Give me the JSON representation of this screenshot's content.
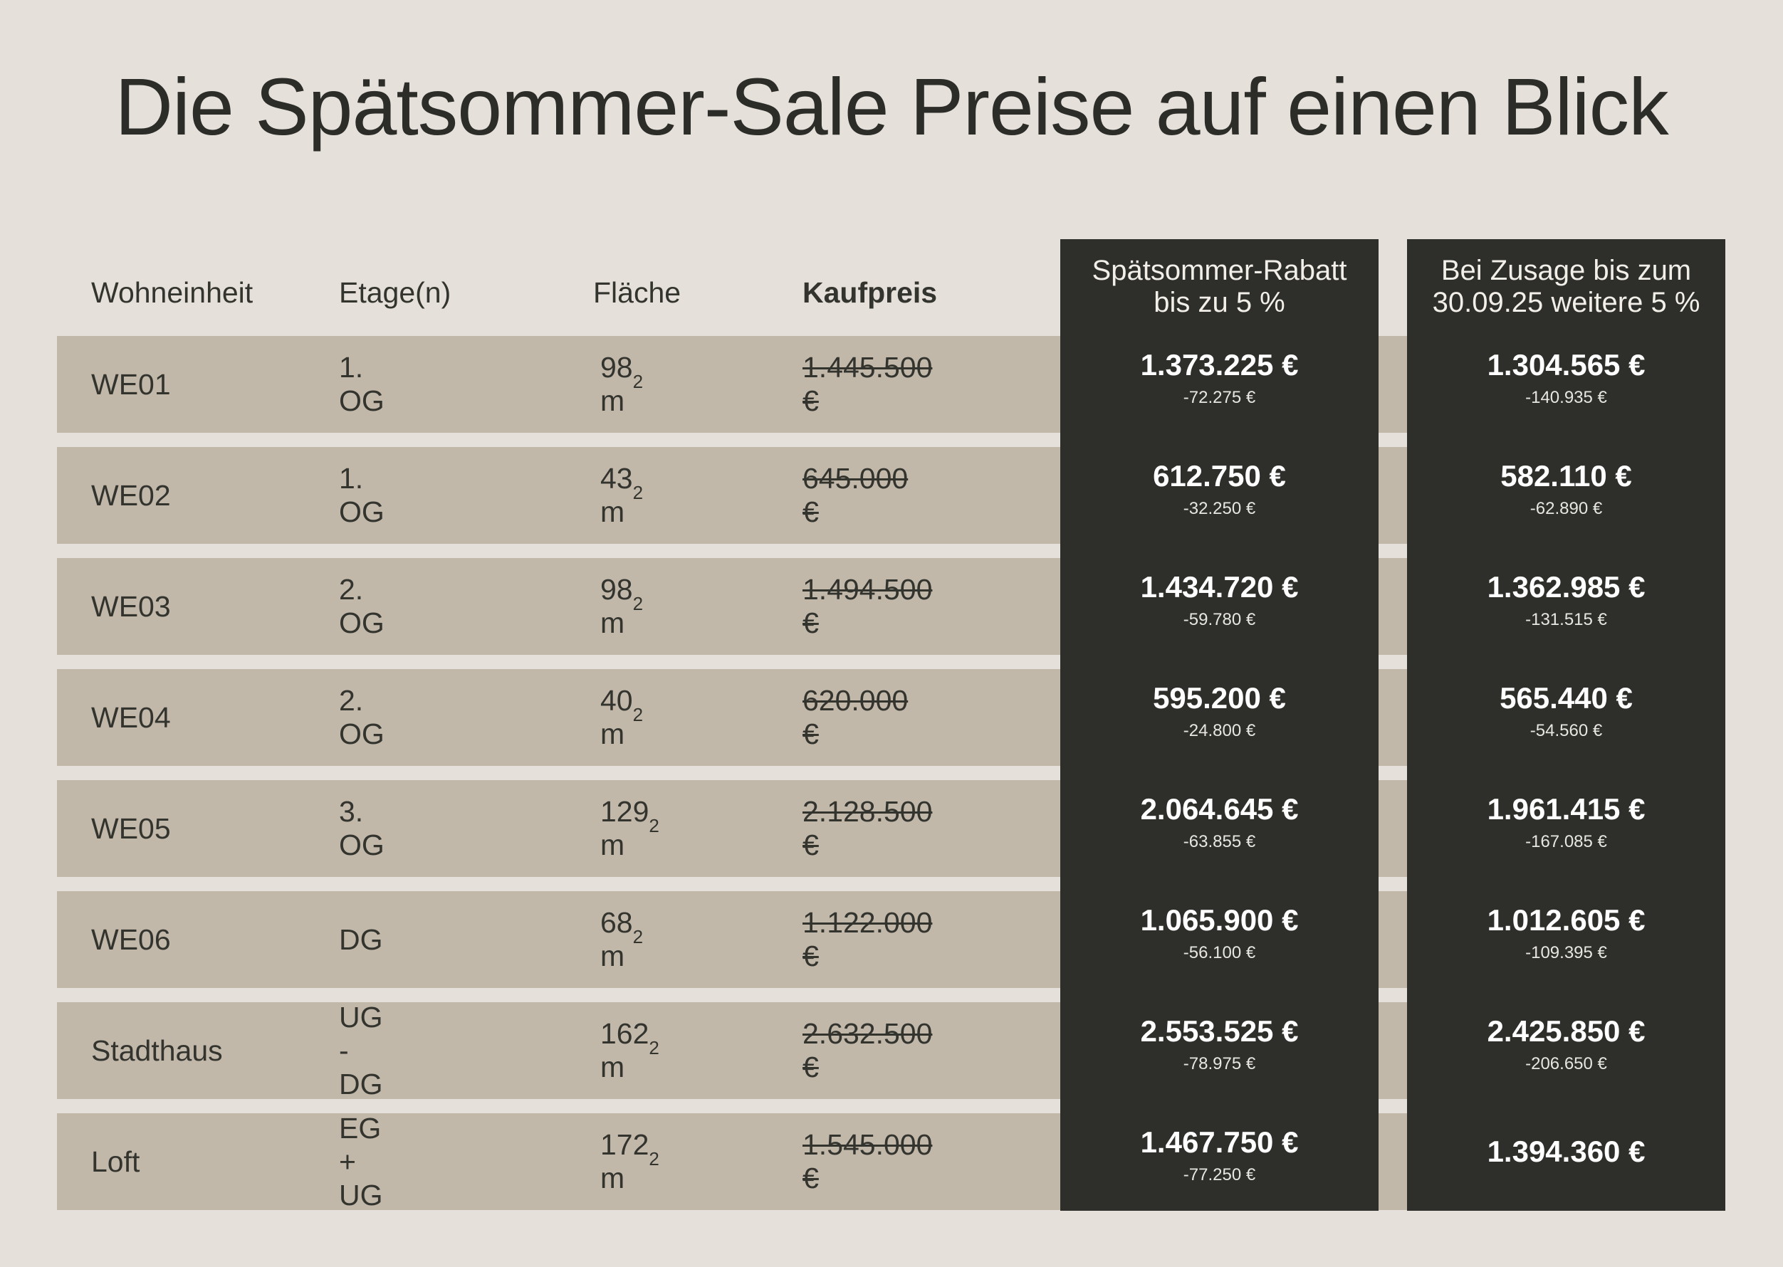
{
  "title": "Die Spätsommer-Sale Preise auf einen Blick",
  "headers": {
    "unit": "Wohneinheit",
    "floor": "Etage(n)",
    "area": "Fläche",
    "price": "Kaufpreis",
    "discount1": "Spätsommer-Rabatt\nbis zu 5 %",
    "discount2": "Bei Zusage bis zum\n30.09.25 weitere 5 %"
  },
  "rows": [
    {
      "unit": "WE01",
      "floor": "1. OG",
      "area": "98 m",
      "area_sup": "2",
      "price": "1.445.500 €",
      "d1": "1.373.225 €",
      "d1_sub": "-72.275 €",
      "d2": "1.304.565 €",
      "d2_sub": "-140.935 €"
    },
    {
      "unit": "WE02",
      "floor": "1. OG",
      "area": "43 m",
      "area_sup": "2",
      "price": "645.000 €",
      "d1": "612.750 €",
      "d1_sub": "-32.250 €",
      "d2": "582.110 €",
      "d2_sub": "-62.890 €"
    },
    {
      "unit": "WE03",
      "floor": "2. OG",
      "area": "98 m",
      "area_sup": "2",
      "price": "1.494.500 €",
      "d1": "1.434.720 €",
      "d1_sub": "-59.780 €",
      "d2": "1.362.985 €",
      "d2_sub": "-131.515 €"
    },
    {
      "unit": "WE04",
      "floor": "2. OG",
      "area": "40 m",
      "area_sup": "2",
      "price": "620.000 €",
      "d1": "595.200 €",
      "d1_sub": "-24.800 €",
      "d2": "565.440 €",
      "d2_sub": "-54.560 €"
    },
    {
      "unit": "WE05",
      "floor": "3. OG",
      "area": "129 m",
      "area_sup": "2",
      "price": "2.128.500 €",
      "d1": "2.064.645 €",
      "d1_sub": "-63.855 €",
      "d2": "1.961.415 €",
      "d2_sub": "-167.085 €"
    },
    {
      "unit": "WE06",
      "floor": "DG",
      "area": "68 m",
      "area_sup": "2",
      "price": "1.122.000 €",
      "d1": "1.065.900 €",
      "d1_sub": "-56.100 €",
      "d2": "1.012.605 €",
      "d2_sub": "-109.395 €"
    },
    {
      "unit": "Stadthaus",
      "floor": "UG - DG",
      "area": "162 m",
      "area_sup": "2",
      "price": "2.632.500 €",
      "d1": "2.553.525 €",
      "d1_sub": "-78.975 €",
      "d2": "2.425.850 €",
      "d2_sub": "-206.650 €"
    },
    {
      "unit": "Loft",
      "floor": "EG + UG",
      "area": "172 m",
      "area_sup": "2",
      "price": "1.545.000 €",
      "d1": "1.467.750 €",
      "d1_sub": "-77.250 €",
      "d2": "1.394.360 €",
      "d2_sub": ""
    }
  ],
  "colors": {
    "background": "#e5e0da",
    "row_band": "#c2b8aa",
    "dark_column": "#2e2e2a",
    "text_dark": "#34342f",
    "text_light": "#ffffff"
  }
}
